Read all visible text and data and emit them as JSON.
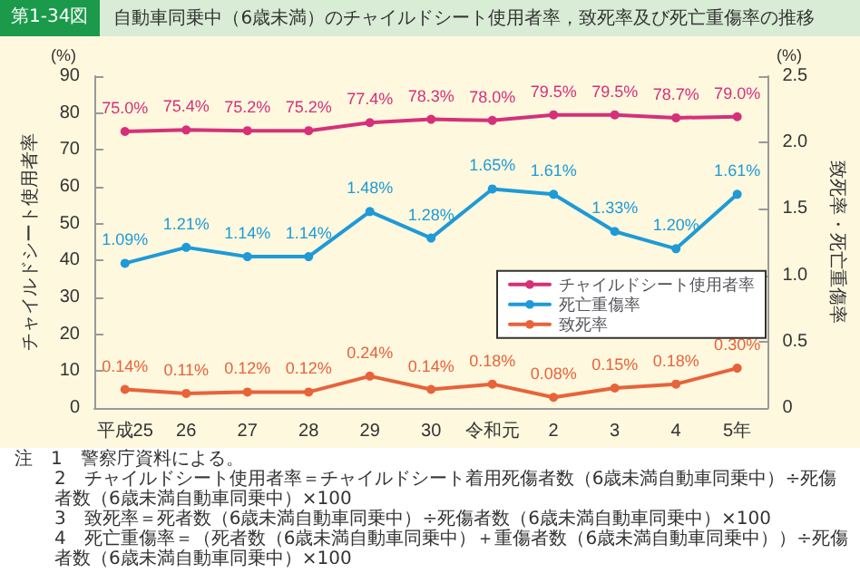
{
  "chart_data": {
    "type": "line",
    "title": "第1-34図",
    "subtitle": "自動車同乗中（6歳未満）のチャイルドシート使用者率，致死率及び死亡重傷率の推移",
    "categories": [
      "平成25",
      "26",
      "27",
      "28",
      "29",
      "30",
      "令和元",
      "2",
      "3",
      "4",
      "5年"
    ],
    "ylabel": "チャイルドシート使用者率",
    "y2label": "致死率・死亡重傷率",
    "ylim": [
      0,
      90
    ],
    "yticks": [
      0,
      10,
      20,
      30,
      40,
      50,
      60,
      70,
      80,
      90
    ],
    "y2lim": [
      0,
      2.5
    ],
    "y2ticks": [
      0,
      0.5,
      {
        "value": 1,
        "label": "1.0"
      },
      1.5,
      {
        "value": 2,
        "label": "2.0"
      },
      2.5
    ],
    "series": [
      {
        "name": "チャイルドシート使用者率",
        "color": "#d6307a",
        "values": [
          75.0,
          75.4,
          75.2,
          75.2,
          77.4,
          78.3,
          78.0,
          79.5,
          79.5,
          78.7,
          79.0
        ],
        "value_labels": [
          "75.0%",
          "75.4%",
          "75.2%",
          "75.2%",
          "77.4%",
          "78.3%",
          "78.0%",
          "79.5%",
          "79.5%",
          "78.7%",
          "79.0%"
        ]
      },
      {
        "name": "死亡重傷率",
        "color": "#1e9ad6",
        "axis": "y2",
        "values": [
          1.09,
          1.21,
          1.14,
          1.14,
          1.48,
          1.28,
          1.65,
          1.61,
          1.33,
          1.2,
          1.61
        ],
        "value_labels": [
          "1.09%",
          "1.21%",
          "1.14%",
          "1.14%",
          "1.48%",
          "1.28%",
          "1.65%",
          "1.61%",
          "1.33%",
          "1.20%",
          "1.61%"
        ]
      },
      {
        "name": "致死率",
        "color": "#e8623a",
        "axis": "y2",
        "values": [
          0.14,
          0.11,
          0.12,
          0.12,
          0.24,
          0.14,
          0.18,
          0.08,
          0.15,
          0.18,
          0.3
        ],
        "value_labels": [
          "0.14%",
          "0.11%",
          "0.12%",
          "0.12%",
          "0.24%",
          "0.14%",
          "0.18%",
          "0.08%",
          "0.15%",
          "0.18%",
          "0.30%"
        ]
      }
    ],
    "annotations": [
      "(%)",
      "(%)",
      "注　1　警察庁資料による。",
      "2　チャイルドシート使用者率＝チャイルドシート着用死傷者数（6歳未満自動車同乗中）÷死傷者数（6歳未満自動車同乗中）×100",
      "3　致死率＝死者数（6歳未満自動車同乗中）÷死傷者数（6歳未満自動車同乗中）×100",
      "4　死亡重傷率＝（死者数（6歳未満自動車同乗中）＋重傷者数（6歳未満自動車同乗中））÷死傷者数（6歳未満自動車同乗中）×100"
    ],
    "marker": "circle",
    "line_style": "solid",
    "grid": false,
    "legend": "right"
  }
}
